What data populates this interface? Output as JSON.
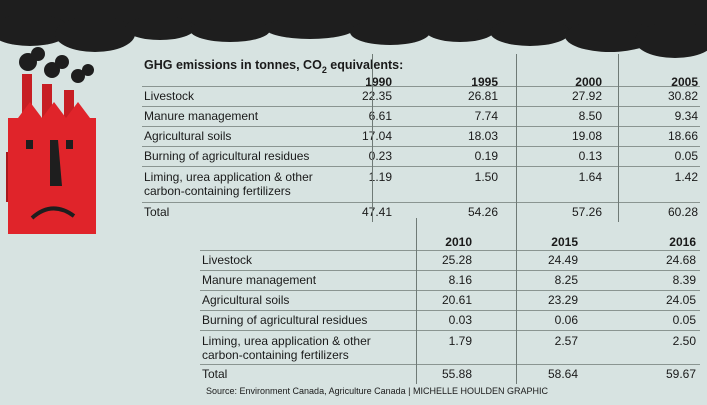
{
  "title": {
    "prefix": "GHG emissions in tonnes, CO",
    "sub": "2",
    "suffix": " equivalents:"
  },
  "table1": {
    "years": [
      "1990",
      "1995",
      "2000",
      "2005"
    ],
    "rows": [
      {
        "label": "Livestock",
        "values": [
          "22.35",
          "26.81",
          "27.92",
          "30.82"
        ]
      },
      {
        "label": "Manure management",
        "values": [
          "6.61",
          "7.74",
          "8.50",
          "9.34"
        ]
      },
      {
        "label": "Agricultural soils",
        "values": [
          "17.04",
          "18.03",
          "19.08",
          "18.66"
        ]
      },
      {
        "label": "Burning of agricultural residues",
        "values": [
          "0.23",
          "0.19",
          "0.13",
          "0.05"
        ]
      },
      {
        "label": "Liming, urea application & other",
        "label2": "carbon-containing fertilizers",
        "values": [
          "1.19",
          "1.50",
          "1.64",
          "1.42"
        ]
      },
      {
        "label": "Total",
        "values": [
          "47.41",
          "54.26",
          "57.26",
          "60.28"
        ]
      }
    ]
  },
  "table2": {
    "years": [
      "2010",
      "2015",
      "2016"
    ],
    "rows": [
      {
        "label": "Livestock",
        "values": [
          "25.28",
          "24.49",
          "24.68"
        ]
      },
      {
        "label": "Manure management",
        "values": [
          "8.16",
          "8.25",
          "8.39"
        ]
      },
      {
        "label": "Agricultural soils",
        "values": [
          "20.61",
          "23.29",
          "24.05"
        ]
      },
      {
        "label": "Burning of agricultural residues",
        "values": [
          "0.03",
          "0.06",
          "0.05"
        ]
      },
      {
        "label": "Liming, urea application & other",
        "label2": "carbon-containing fertilizers",
        "values": [
          "1.79",
          "2.57",
          "2.50"
        ]
      },
      {
        "label": "Total",
        "values": [
          "55.88",
          "58.64",
          "59.67"
        ]
      }
    ]
  },
  "source": "Source: Environment Canada, Agriculture Canada  |  MICHELLE HOULDEN GRAPHIC",
  "colors": {
    "background": "#d7e3e1",
    "smoke": "#1e1e1e",
    "factory": "#e0242a",
    "factory_dark": "#a8181c"
  }
}
